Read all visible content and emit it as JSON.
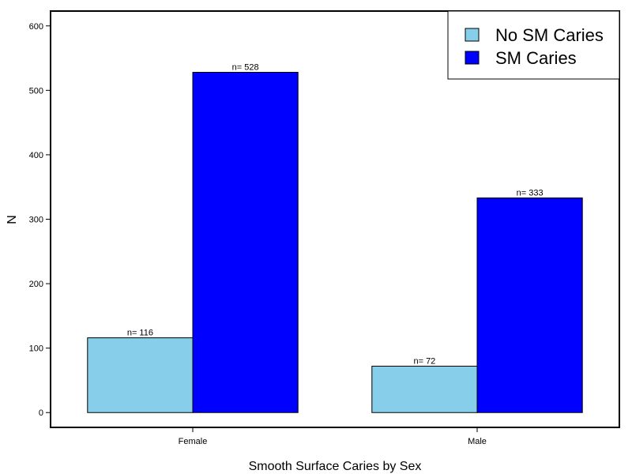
{
  "chart_data": {
    "type": "bar",
    "categories": [
      "Female",
      "Male"
    ],
    "series": [
      {
        "name": "No SM Caries",
        "values": [
          116,
          72
        ],
        "labels": [
          "n= 116",
          "n= 72"
        ],
        "color": "#87CEEB"
      },
      {
        "name": "SM Caries",
        "values": [
          528,
          333
        ],
        "labels": [
          "n= 528",
          "n= 333"
        ],
        "color": "#0000FF"
      }
    ],
    "title": "",
    "xlabel": "Smooth Surface Caries by Sex",
    "ylabel": "N",
    "ylim": [
      -23,
      623
    ],
    "yticks": [
      0,
      100,
      200,
      300,
      400,
      500,
      600
    ],
    "grid": false,
    "legend_position": "top-right"
  }
}
